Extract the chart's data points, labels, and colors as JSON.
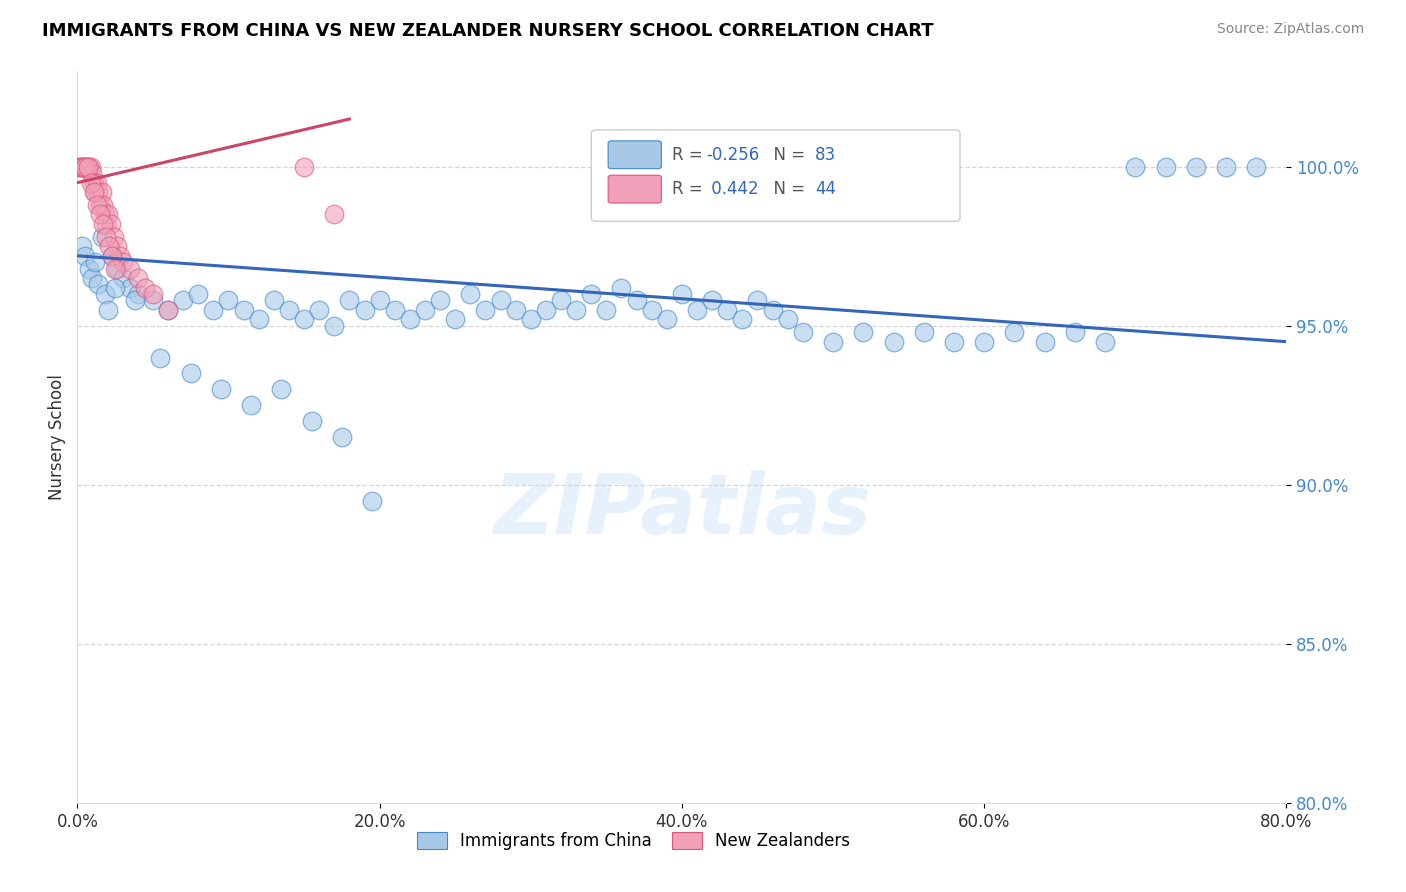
{
  "title": "IMMIGRANTS FROM CHINA VS NEW ZEALANDER NURSERY SCHOOL CORRELATION CHART",
  "source": "Source: ZipAtlas.com",
  "ylabel": "Nursery School",
  "x_tick_labels": [
    "0.0%",
    "20.0%",
    "40.0%",
    "60.0%",
    "80.0%"
  ],
  "x_tick_vals": [
    0,
    20,
    40,
    60,
    80
  ],
  "y_tick_labels": [
    "80.0%",
    "85.0%",
    "90.0%",
    "95.0%",
    "100.0%"
  ],
  "y_tick_vals": [
    80,
    85,
    90,
    95,
    100
  ],
  "xlim": [
    0,
    80
  ],
  "ylim": [
    80,
    103
  ],
  "legend_label_blue": "Immigrants from China",
  "legend_label_pink": "New Zealanders",
  "R_blue": -0.256,
  "N_blue": 83,
  "R_pink": 0.442,
  "N_pink": 44,
  "blue_face": "#a8c8e8",
  "pink_face": "#f0a0b8",
  "blue_edge": "#4488cc",
  "pink_edge": "#dd5577",
  "blue_line": "#3366bb",
  "pink_line": "#cc4466",
  "watermark": "ZIPatlas",
  "blue_scatter_x": [
    0.3,
    0.5,
    0.8,
    1.0,
    1.2,
    1.4,
    1.6,
    1.8,
    2.0,
    2.3,
    2.6,
    3.0,
    3.5,
    4.0,
    5.0,
    6.0,
    7.0,
    8.0,
    9.0,
    10.0,
    11.0,
    12.0,
    13.0,
    14.0,
    15.0,
    16.0,
    17.0,
    18.0,
    19.0,
    20.0,
    21.0,
    22.0,
    23.0,
    24.0,
    25.0,
    26.0,
    27.0,
    28.0,
    29.0,
    30.0,
    31.0,
    32.0,
    33.0,
    34.0,
    35.0,
    36.0,
    37.0,
    38.0,
    39.0,
    40.0,
    41.0,
    42.0,
    43.0,
    44.0,
    45.0,
    46.0,
    47.0,
    48.0,
    50.0,
    52.0,
    54.0,
    56.0,
    58.0,
    60.0,
    62.0,
    64.0,
    66.0,
    68.0,
    70.0,
    72.0,
    74.0,
    76.0,
    78.0,
    2.5,
    3.8,
    5.5,
    7.5,
    9.5,
    11.5,
    13.5,
    15.5,
    17.5,
    19.5
  ],
  "blue_scatter_y": [
    97.5,
    97.2,
    96.8,
    96.5,
    97.0,
    96.3,
    97.8,
    96.0,
    95.5,
    97.2,
    96.8,
    96.5,
    96.2,
    96.0,
    95.8,
    95.5,
    95.8,
    96.0,
    95.5,
    95.8,
    95.5,
    95.2,
    95.8,
    95.5,
    95.2,
    95.5,
    95.0,
    95.8,
    95.5,
    95.8,
    95.5,
    95.2,
    95.5,
    95.8,
    95.2,
    96.0,
    95.5,
    95.8,
    95.5,
    95.2,
    95.5,
    95.8,
    95.5,
    96.0,
    95.5,
    96.2,
    95.8,
    95.5,
    95.2,
    96.0,
    95.5,
    95.8,
    95.5,
    95.2,
    95.8,
    95.5,
    95.2,
    94.8,
    94.5,
    94.8,
    94.5,
    94.8,
    94.5,
    94.5,
    94.8,
    94.5,
    94.8,
    94.5,
    100.0,
    100.0,
    100.0,
    100.0,
    100.0,
    96.2,
    95.8,
    94.0,
    93.5,
    93.0,
    92.5,
    93.0,
    92.0,
    91.5,
    89.5
  ],
  "pink_scatter_x": [
    0.1,
    0.2,
    0.3,
    0.4,
    0.5,
    0.6,
    0.7,
    0.8,
    0.9,
    1.0,
    1.1,
    1.2,
    1.3,
    1.4,
    1.5,
    1.6,
    1.7,
    1.8,
    1.9,
    2.0,
    2.2,
    2.4,
    2.6,
    2.8,
    3.0,
    3.5,
    4.0,
    4.5,
    5.0,
    6.0,
    0.3,
    0.5,
    0.7,
    0.9,
    1.1,
    1.3,
    1.5,
    1.7,
    1.9,
    2.1,
    2.3,
    2.5,
    15.0,
    17.0
  ],
  "pink_scatter_y": [
    100.0,
    100.0,
    100.0,
    100.0,
    100.0,
    100.0,
    100.0,
    100.0,
    100.0,
    99.8,
    99.5,
    99.2,
    99.5,
    99.2,
    98.8,
    99.2,
    98.8,
    98.5,
    98.2,
    98.5,
    98.2,
    97.8,
    97.5,
    97.2,
    97.0,
    96.8,
    96.5,
    96.2,
    96.0,
    95.5,
    100.0,
    100.0,
    100.0,
    99.5,
    99.2,
    98.8,
    98.5,
    98.2,
    97.8,
    97.5,
    97.2,
    96.8,
    100.0,
    98.5
  ],
  "blue_trendline_x": [
    0,
    80
  ],
  "blue_trendline_y": [
    97.2,
    94.5
  ],
  "pink_trendline_x": [
    0,
    18
  ],
  "pink_trendline_y": [
    99.5,
    101.5
  ]
}
